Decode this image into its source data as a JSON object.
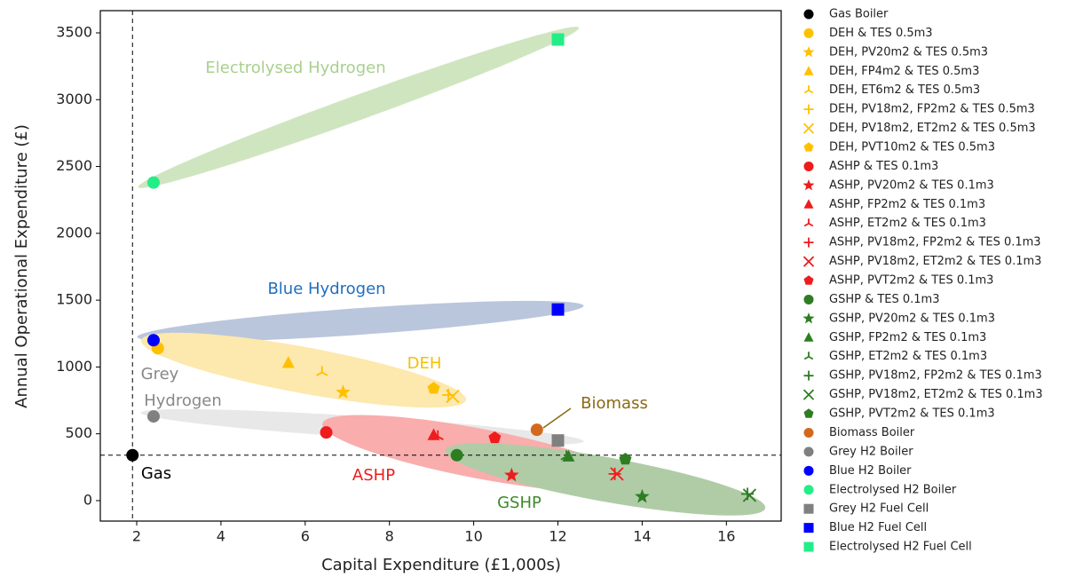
{
  "chart_data": {
    "type": "scatter",
    "xlabel": "Capital Expenditure (£1,000s)",
    "ylabel": "Annual Operational Expenditure (£)",
    "xlim": [
      1.136,
      17.3
    ],
    "ylim": [
      -153,
      3666
    ],
    "xticks": [
      2,
      4,
      6,
      8,
      10,
      12,
      14,
      16
    ],
    "yticks": [
      0,
      500,
      1000,
      1500,
      2000,
      2500,
      3000,
      3500
    ],
    "annotations": [
      "Electrolysed Hydrogen",
      "Blue Hydrogen",
      "DEH",
      "Grey",
      "Hydrogen",
      "Biomass",
      "Gas",
      "ASHP",
      "GSHP"
    ],
    "series": [
      {
        "name": "Gas Boiler",
        "color": "#000000",
        "marker": "circle",
        "x": [
          1.9
        ],
        "values": [
          340
        ]
      },
      {
        "name": "DEH & TES 0.5m3",
        "color": "#ffc000",
        "marker": "circle",
        "x": [
          2.5
        ],
        "values": [
          1140
        ]
      },
      {
        "name": "DEH, PV20m2 & TES 0.5m3",
        "color": "#ffc000",
        "marker": "star",
        "x": [
          6.9
        ],
        "values": [
          810
        ]
      },
      {
        "name": "DEH, FP4m2 & TES 0.5m3",
        "color": "#ffc000",
        "marker": "triangle",
        "x": [
          5.6
        ],
        "values": [
          1030
        ]
      },
      {
        "name": "DEH, ET6m2 & TES 0.5m3",
        "color": "#ffc000",
        "marker": "tri",
        "x": [
          6.4
        ],
        "values": [
          960
        ]
      },
      {
        "name": "DEH, PV18m2, FP2m2 & TES 0.5m3",
        "color": "#ffc000",
        "marker": "plus",
        "x": [
          9.4
        ],
        "values": [
          790
        ]
      },
      {
        "name": "DEH, PV18m2, ET2m2 & TES 0.5m3",
        "color": "#ffc000",
        "marker": "x",
        "x": [
          9.5
        ],
        "values": [
          780
        ]
      },
      {
        "name": "DEH, PVT10m2 & TES 0.5m3",
        "color": "#ffc000",
        "marker": "pentagon",
        "x": [
          9.05
        ],
        "values": [
          840
        ]
      },
      {
        "name": "ASHP & TES 0.1m3",
        "color": "#ee1c1c",
        "marker": "circle",
        "x": [
          6.5
        ],
        "values": [
          510
        ]
      },
      {
        "name": "ASHP, PV20m2 & TES 0.1m3",
        "color": "#ee1c1c",
        "marker": "star",
        "x": [
          10.9
        ],
        "values": [
          190
        ]
      },
      {
        "name": "ASHP, FP2m2 & TES 0.1m3",
        "color": "#ee1c1c",
        "marker": "triangle",
        "x": [
          9.05
        ],
        "values": [
          490
        ]
      },
      {
        "name": "ASHP, ET2m2 & TES 0.1m3",
        "color": "#ee1c1c",
        "marker": "tri",
        "x": [
          9.15
        ],
        "values": [
          480
        ]
      },
      {
        "name": "ASHP, PV18m2, FP2m2 & TES 0.1m3",
        "color": "#ee1c1c",
        "marker": "plus",
        "x": [
          13.35
        ],
        "values": [
          200
        ]
      },
      {
        "name": "ASHP, PV18m2, ET2m2 & TES 0.1m3",
        "color": "#ee1c1c",
        "marker": "x",
        "x": [
          13.4
        ],
        "values": [
          200
        ]
      },
      {
        "name": "ASHP, PVT2m2 & TES 0.1m3",
        "color": "#ee1c1c",
        "marker": "pentagon",
        "x": [
          10.5
        ],
        "values": [
          470
        ]
      },
      {
        "name": "GSHP & TES 0.1m3",
        "color": "#2e7d22",
        "marker": "circle",
        "x": [
          9.6
        ],
        "values": [
          340
        ]
      },
      {
        "name": "GSHP, PV20m2 & TES 0.1m3",
        "color": "#2e7d22",
        "marker": "star",
        "x": [
          14.0
        ],
        "values": [
          30
        ]
      },
      {
        "name": "GSHP, FP2m2 & TES 0.1m3",
        "color": "#2e7d22",
        "marker": "triangle",
        "x": [
          12.25
        ],
        "values": [
          330
        ]
      },
      {
        "name": "GSHP, ET2m2 & TES 0.1m3",
        "color": "#2e7d22",
        "marker": "tri",
        "x": [
          12.2
        ],
        "values": [
          330
        ]
      },
      {
        "name": "GSHP, PV18m2, FP2m2 & TES 0.1m3",
        "color": "#2e7d22",
        "marker": "plus",
        "x": [
          16.5
        ],
        "values": [
          50
        ]
      },
      {
        "name": "GSHP, PV18m2, ET2m2 & TES 0.1m3",
        "color": "#2e7d22",
        "marker": "x",
        "x": [
          16.55
        ],
        "values": [
          40
        ]
      },
      {
        "name": "GSHP, PVT2m2 & TES 0.1m3",
        "color": "#2e7d22",
        "marker": "pentagon",
        "x": [
          13.6
        ],
        "values": [
          310
        ]
      },
      {
        "name": "Biomass Boiler",
        "color": "#d2691e",
        "marker": "circle",
        "x": [
          11.5
        ],
        "values": [
          530
        ]
      },
      {
        "name": "Grey H2 Boiler",
        "color": "#808080",
        "marker": "circle",
        "x": [
          2.4
        ],
        "values": [
          630
        ]
      },
      {
        "name": "Blue H2 Boiler",
        "color": "#0000ff",
        "marker": "circle",
        "x": [
          2.4
        ],
        "values": [
          1200
        ]
      },
      {
        "name": "Electrolysed H2 Boiler",
        "color": "#22ee88",
        "marker": "circle",
        "x": [
          2.4
        ],
        "values": [
          2380
        ]
      },
      {
        "name": "Grey H2 Fuel Cell",
        "color": "#808080",
        "marker": "square",
        "x": [
          12.0
        ],
        "values": [
          450
        ]
      },
      {
        "name": "Blue H2 Fuel Cell",
        "color": "#0000ff",
        "marker": "square",
        "x": [
          12.0
        ],
        "values": [
          1430
        ]
      },
      {
        "name": "Electrolysed H2 Fuel Cell",
        "color": "#22ee88",
        "marker": "square",
        "x": [
          12.0
        ],
        "values": [
          3450
        ]
      }
    ]
  }
}
